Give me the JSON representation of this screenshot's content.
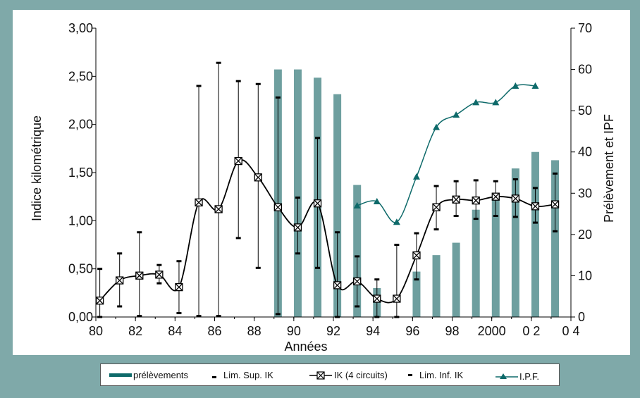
{
  "chart_data": {
    "type": "bar+line",
    "xlabel": "Années",
    "ylabel_left": "Indice kilométrique",
    "ylabel_right": "Prélèvement et IPF",
    "x_tick_labels": [
      "80",
      "82",
      "84",
      "86",
      "88",
      "90",
      "92",
      "94",
      "96",
      "98",
      "2000",
      "0 2",
      "0 4"
    ],
    "x_tick_values": [
      1980,
      1982,
      1984,
      1986,
      1988,
      1990,
      1992,
      1994,
      1996,
      1998,
      2000,
      2002,
      2004
    ],
    "xlim": [
      1980,
      2004
    ],
    "ylim_left": [
      0,
      3
    ],
    "ylim_right": [
      0,
      70
    ],
    "y_left_tick_labels": [
      "0,00",
      "0,50",
      "1,00",
      "1,50",
      "2,00",
      "2,50",
      "3,00"
    ],
    "y_left_tick_values": [
      0,
      0.5,
      1,
      1.5,
      2,
      2.5,
      3
    ],
    "y_right_tick_labels": [
      "0",
      "10",
      "20",
      "30",
      "40",
      "50",
      "60",
      "70"
    ],
    "y_right_tick_values": [
      0,
      10,
      20,
      30,
      40,
      50,
      60,
      70
    ],
    "legend_position": "bottom",
    "colors": {
      "prelevements": "#6e9f9f",
      "ipf": "#0e6a6a",
      "ik": "#000000"
    },
    "series": [
      {
        "name": "prélèvements",
        "kind": "bar",
        "axis": "right",
        "x": [
          1989,
          1990,
          1991,
          1992,
          1993,
          1994,
          1996,
          1997,
          1998,
          1999,
          2000,
          2001,
          2002,
          2003
        ],
        "values": [
          60,
          60,
          58,
          54,
          32,
          7,
          11,
          15,
          18,
          26,
          29,
          36,
          40,
          38
        ]
      },
      {
        "name": "IK (4 circuits)",
        "kind": "line",
        "axis": "left",
        "x": [
          1980,
          1981,
          1982,
          1983,
          1984,
          1985,
          1986,
          1987,
          1988,
          1989,
          1990,
          1991,
          1992,
          1993,
          1994,
          1995,
          1996,
          1997,
          1998,
          1999,
          2000,
          2001,
          2002,
          2003
        ],
        "values": [
          0.17,
          0.38,
          0.43,
          0.44,
          0.31,
          1.19,
          1.12,
          1.62,
          1.45,
          1.14,
          0.93,
          1.18,
          0.33,
          0.37,
          0.19,
          0.19,
          0.64,
          1.14,
          1.22,
          1.21,
          1.25,
          1.23,
          1.15,
          1.17
        ]
      },
      {
        "name": "Lim. Sup. IK",
        "kind": "marker",
        "axis": "left",
        "x": [
          1980,
          1981,
          1982,
          1983,
          1984,
          1985,
          1986,
          1987,
          1988,
          1989,
          1990,
          1991,
          1992,
          1993,
          1994,
          1995,
          1996,
          1997,
          1998,
          1999,
          2000,
          2001,
          2002,
          2003
        ],
        "values": [
          0.5,
          0.66,
          0.88,
          0.54,
          0.58,
          2.4,
          2.64,
          2.45,
          2.42,
          2.28,
          1.24,
          1.86,
          0.88,
          0.63,
          0.39,
          0.75,
          0.87,
          1.36,
          1.41,
          1.42,
          1.41,
          1.43,
          1.34,
          1.49
        ]
      },
      {
        "name": "Lim. Inf. IK",
        "kind": "marker",
        "axis": "left",
        "x": [
          1980,
          1981,
          1982,
          1983,
          1984,
          1985,
          1986,
          1987,
          1988,
          1989,
          1990,
          1991,
          1992,
          1993,
          1994,
          1995,
          1996,
          1997,
          1998,
          1999,
          2000,
          2001,
          2002,
          2003
        ],
        "values": [
          0.0,
          0.11,
          0.01,
          0.35,
          0.04,
          0.01,
          0.01,
          0.82,
          0.51,
          0.03,
          0.66,
          0.51,
          0.0,
          0.11,
          0.0,
          0.0,
          0.39,
          0.91,
          1.05,
          1.02,
          1.05,
          1.04,
          0.98,
          0.89
        ]
      },
      {
        "name": "I.P.F.",
        "kind": "line",
        "axis": "right",
        "x": [
          1993,
          1994,
          1995,
          1996,
          1997,
          1998,
          1999,
          2000,
          2001,
          2002
        ],
        "values": [
          27,
          28,
          23,
          34,
          46,
          49,
          52,
          52,
          56,
          56
        ]
      }
    ]
  }
}
